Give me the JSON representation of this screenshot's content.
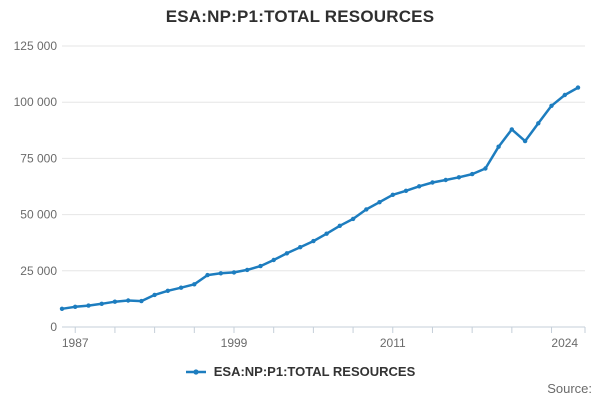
{
  "title": "ESA:NP:P1:TOTAL RESOURCES",
  "legend": {
    "label": "ESA:NP:P1:TOTAL RESOURCES"
  },
  "source_label": "Source:",
  "colors": {
    "line": "#1d7dbf",
    "grid": "#e6e6e6",
    "axis": "#c5cfd9",
    "title_text": "#2f2f2f",
    "tick_text": "#6b6b6b",
    "legend_text": "#333333"
  },
  "chart_data": {
    "type": "line",
    "title": "ESA:NP:P1:TOTAL RESOURCES",
    "xlabel": "",
    "ylabel": "",
    "xlim": [
      1986,
      2025
    ],
    "ylim": [
      0,
      125000
    ],
    "grid": "horizontal",
    "legend_position": "bottom",
    "y_ticks": [
      0,
      25000,
      50000,
      75000,
      100000,
      125000
    ],
    "y_tick_labels": [
      "0",
      "25 000",
      "50 000",
      "75 000",
      "100 000",
      "125 000"
    ],
    "x_label_years": [
      1987,
      1999,
      2011,
      2024
    ],
    "x_tick_labels": [
      "1987",
      "1999",
      "2011",
      "2024"
    ],
    "x_minor_tick_years": [
      1987,
      1990,
      1993,
      1996,
      1999,
      2002,
      2005,
      2008,
      2011,
      2014,
      2017,
      2020,
      2023
    ],
    "series": [
      {
        "name": "ESA:NP:P1:TOTAL RESOURCES",
        "x": [
          1986,
          1987,
          1988,
          1989,
          1990,
          1991,
          1992,
          1993,
          1994,
          1995,
          1996,
          1997,
          1998,
          1999,
          2000,
          2001,
          2002,
          2003,
          2004,
          2005,
          2006,
          2007,
          2008,
          2009,
          2010,
          2011,
          2012,
          2013,
          2014,
          2015,
          2016,
          2017,
          2018,
          2019,
          2020,
          2021,
          2022,
          2023,
          2024,
          2025
        ],
        "values": [
          8100,
          9000,
          9500,
          10300,
          11250,
          11800,
          11500,
          14300,
          16100,
          17500,
          19000,
          23100,
          23900,
          24300,
          25400,
          27100,
          29800,
          32800,
          35500,
          38200,
          41500,
          45000,
          48100,
          52300,
          55500,
          58800,
          60600,
          62600,
          64300,
          65400,
          66600,
          68000,
          70500,
          80200,
          87900,
          82700,
          90600,
          98400,
          103200,
          106500
        ]
      }
    ]
  }
}
